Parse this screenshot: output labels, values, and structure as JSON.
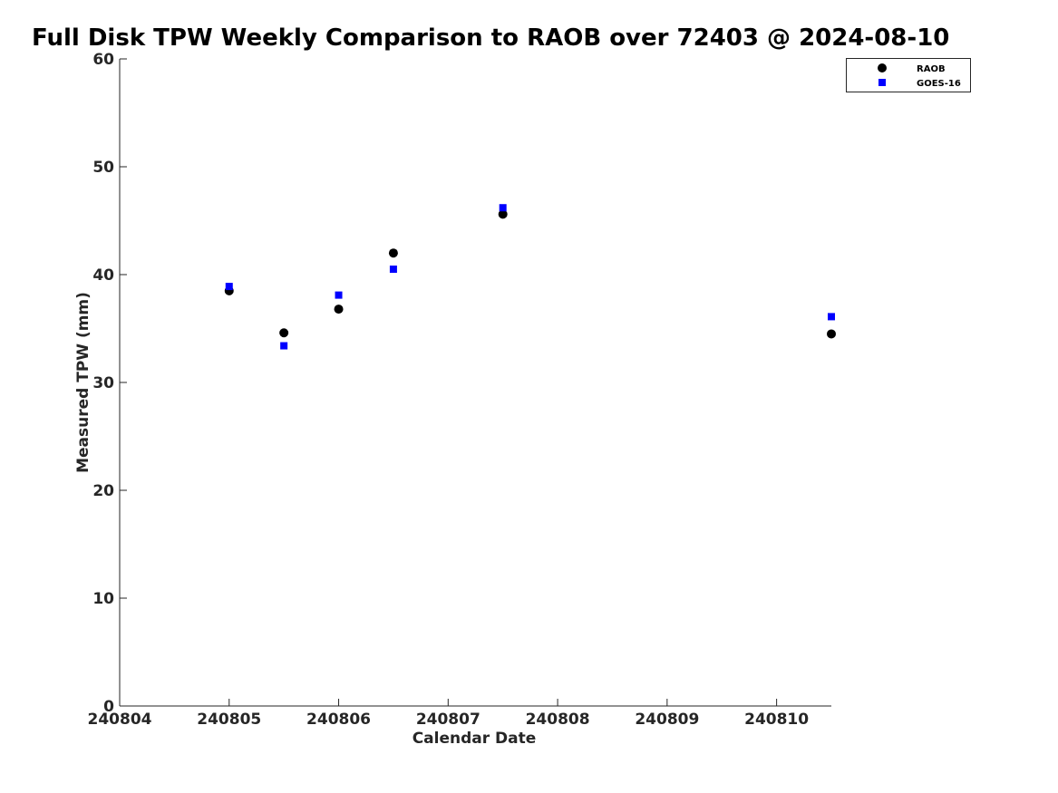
{
  "chart_data": {
    "type": "scatter",
    "title": "Full Disk TPW Weekly Comparison to RAOB over 72403 @ 2024-08-10",
    "xlabel": "Calendar Date",
    "ylabel": "Measured TPW (mm)",
    "xlim": [
      240804,
      240810.5
    ],
    "ylim": [
      0,
      60
    ],
    "xticks": [
      240804,
      240805,
      240806,
      240807,
      240808,
      240809,
      240810
    ],
    "yticks": [
      0,
      10,
      20,
      30,
      40,
      50,
      60
    ],
    "grid": false,
    "legend_position": "top-right",
    "series": [
      {
        "name": "RAOB",
        "marker": "circle",
        "color": "#000000",
        "points": [
          {
            "x": 240805.0,
            "y": 38.5
          },
          {
            "x": 240805.5,
            "y": 34.6
          },
          {
            "x": 240806.0,
            "y": 36.8
          },
          {
            "x": 240806.5,
            "y": 42.0
          },
          {
            "x": 240807.5,
            "y": 45.6
          },
          {
            "x": 240810.5,
            "y": 34.5
          }
        ]
      },
      {
        "name": "GOES-16",
        "marker": "square",
        "color": "#0000ff",
        "points": [
          {
            "x": 240805.0,
            "y": 38.9
          },
          {
            "x": 240805.5,
            "y": 33.4
          },
          {
            "x": 240806.0,
            "y": 38.1
          },
          {
            "x": 240806.5,
            "y": 40.5
          },
          {
            "x": 240807.5,
            "y": 46.2
          },
          {
            "x": 240810.5,
            "y": 36.1
          }
        ]
      }
    ]
  }
}
